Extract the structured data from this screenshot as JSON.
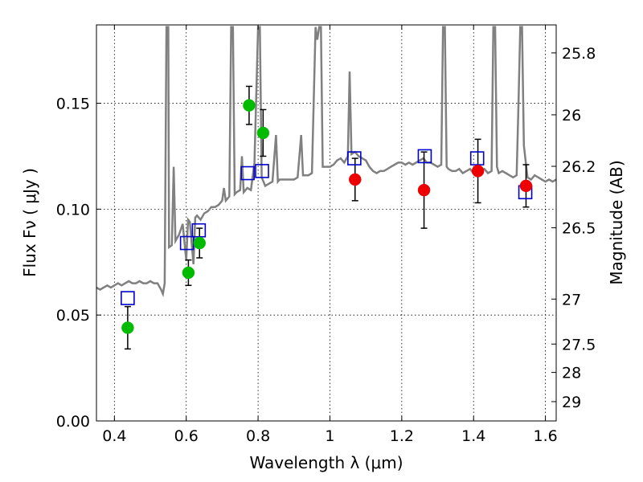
{
  "chart_data": {
    "type": "scatter",
    "xlabel": "Wavelength  λ (μm)",
    "ylabel": "Flux  Fν  ( μJy )",
    "ylabel_right": "Magnitude (AB)",
    "xlim": [
      0.35,
      1.63
    ],
    "ylim": [
      0.0,
      0.187
    ],
    "grid": true,
    "x_ticks": [
      0.4,
      0.6,
      0.8,
      1.0,
      1.2,
      1.4,
      1.6
    ],
    "x_tick_labels": [
      "0.4",
      "0.6",
      "0.8",
      "1",
      "1.2",
      "1.4",
      "1.6"
    ],
    "y_ticks": [
      0.0,
      0.05,
      0.1,
      0.15
    ],
    "y_tick_labels": [
      "0.00",
      "0.05",
      "0.10",
      "0.15"
    ],
    "mag_ticks": [
      25.8,
      26,
      26.2,
      26.5,
      27,
      27.5,
      28,
      29
    ],
    "mag_tick_labels": [
      "25.8",
      "26",
      "26.2",
      "26.5",
      "27",
      "27.5",
      "28",
      "29"
    ],
    "colors": {
      "spectrum": "#808080",
      "observed_green": "#00bb00",
      "observed_red": "#ee0000",
      "model_square": "#0000cc",
      "errorbar": "#000000"
    },
    "spectrum": [
      [
        0.35,
        0.063
      ],
      [
        0.36,
        0.062
      ],
      [
        0.37,
        0.063
      ],
      [
        0.38,
        0.064
      ],
      [
        0.39,
        0.063
      ],
      [
        0.4,
        0.064
      ],
      [
        0.41,
        0.065
      ],
      [
        0.42,
        0.064
      ],
      [
        0.43,
        0.065
      ],
      [
        0.44,
        0.066
      ],
      [
        0.45,
        0.065
      ],
      [
        0.46,
        0.065
      ],
      [
        0.47,
        0.066
      ],
      [
        0.48,
        0.065
      ],
      [
        0.49,
        0.065
      ],
      [
        0.5,
        0.066
      ],
      [
        0.51,
        0.065
      ],
      [
        0.52,
        0.065
      ],
      [
        0.53,
        0.062
      ],
      [
        0.535,
        0.06
      ],
      [
        0.54,
        0.065
      ],
      [
        0.545,
        0.186
      ],
      [
        0.55,
        0.186
      ],
      [
        0.552,
        0.082
      ],
      [
        0.56,
        0.083
      ],
      [
        0.565,
        0.12
      ],
      [
        0.57,
        0.085
      ],
      [
        0.58,
        0.088
      ],
      [
        0.59,
        0.093
      ],
      [
        0.6,
        0.076
      ],
      [
        0.605,
        0.095
      ],
      [
        0.61,
        0.094
      ],
      [
        0.62,
        0.074
      ],
      [
        0.625,
        0.096
      ],
      [
        0.63,
        0.097
      ],
      [
        0.64,
        0.095
      ],
      [
        0.65,
        0.098
      ],
      [
        0.66,
        0.099
      ],
      [
        0.67,
        0.101
      ],
      [
        0.68,
        0.101
      ],
      [
        0.69,
        0.102
      ],
      [
        0.7,
        0.104
      ],
      [
        0.705,
        0.11
      ],
      [
        0.71,
        0.104
      ],
      [
        0.72,
        0.106
      ],
      [
        0.725,
        0.186
      ],
      [
        0.73,
        0.186
      ],
      [
        0.735,
        0.107
      ],
      [
        0.74,
        0.108
      ],
      [
        0.75,
        0.109
      ],
      [
        0.755,
        0.125
      ],
      [
        0.76,
        0.108
      ],
      [
        0.77,
        0.11
      ],
      [
        0.78,
        0.109
      ],
      [
        0.79,
        0.122
      ],
      [
        0.8,
        0.186
      ],
      [
        0.805,
        0.186
      ],
      [
        0.81,
        0.115
      ],
      [
        0.82,
        0.111
      ],
      [
        0.83,
        0.112
      ],
      [
        0.84,
        0.113
      ],
      [
        0.85,
        0.135
      ],
      [
        0.855,
        0.113
      ],
      [
        0.86,
        0.114
      ],
      [
        0.88,
        0.114
      ],
      [
        0.9,
        0.114
      ],
      [
        0.91,
        0.115
      ],
      [
        0.92,
        0.135
      ],
      [
        0.925,
        0.116
      ],
      [
        0.94,
        0.116
      ],
      [
        0.95,
        0.117
      ],
      [
        0.96,
        0.186
      ],
      [
        0.965,
        0.18
      ],
      [
        0.97,
        0.186
      ],
      [
        0.975,
        0.186
      ],
      [
        0.98,
        0.12
      ],
      [
        0.99,
        0.12
      ],
      [
        1.0,
        0.12
      ],
      [
        1.01,
        0.121
      ],
      [
        1.02,
        0.123
      ],
      [
        1.03,
        0.124
      ],
      [
        1.04,
        0.122
      ],
      [
        1.05,
        0.125
      ],
      [
        1.055,
        0.165
      ],
      [
        1.06,
        0.126
      ],
      [
        1.07,
        0.127
      ],
      [
        1.08,
        0.125
      ],
      [
        1.09,
        0.124
      ],
      [
        1.1,
        0.123
      ],
      [
        1.11,
        0.12
      ],
      [
        1.12,
        0.118
      ],
      [
        1.13,
        0.117
      ],
      [
        1.14,
        0.118
      ],
      [
        1.15,
        0.118
      ],
      [
        1.16,
        0.119
      ],
      [
        1.17,
        0.12
      ],
      [
        1.18,
        0.121
      ],
      [
        1.19,
        0.122
      ],
      [
        1.2,
        0.122
      ],
      [
        1.21,
        0.121
      ],
      [
        1.22,
        0.122
      ],
      [
        1.23,
        0.121
      ],
      [
        1.24,
        0.122
      ],
      [
        1.25,
        0.123
      ],
      [
        1.26,
        0.124
      ],
      [
        1.27,
        0.122
      ],
      [
        1.28,
        0.122
      ],
      [
        1.29,
        0.121
      ],
      [
        1.3,
        0.12
      ],
      [
        1.31,
        0.121
      ],
      [
        1.315,
        0.186
      ],
      [
        1.32,
        0.186
      ],
      [
        1.325,
        0.12
      ],
      [
        1.33,
        0.119
      ],
      [
        1.34,
        0.118
      ],
      [
        1.35,
        0.118
      ],
      [
        1.36,
        0.119
      ],
      [
        1.37,
        0.117
      ],
      [
        1.38,
        0.118
      ],
      [
        1.39,
        0.119
      ],
      [
        1.4,
        0.117
      ],
      [
        1.41,
        0.116
      ],
      [
        1.42,
        0.118
      ],
      [
        1.43,
        0.119
      ],
      [
        1.44,
        0.117
      ],
      [
        1.45,
        0.118
      ],
      [
        1.455,
        0.186
      ],
      [
        1.46,
        0.186
      ],
      [
        1.465,
        0.12
      ],
      [
        1.47,
        0.117
      ],
      [
        1.48,
        0.118
      ],
      [
        1.49,
        0.117
      ],
      [
        1.5,
        0.116
      ],
      [
        1.51,
        0.115
      ],
      [
        1.52,
        0.116
      ],
      [
        1.525,
        0.15
      ],
      [
        1.53,
        0.186
      ],
      [
        1.535,
        0.186
      ],
      [
        1.54,
        0.13
      ],
      [
        1.55,
        0.115
      ],
      [
        1.56,
        0.114
      ],
      [
        1.57,
        0.116
      ],
      [
        1.58,
        0.115
      ],
      [
        1.59,
        0.114
      ],
      [
        1.6,
        0.113
      ],
      [
        1.61,
        0.114
      ],
      [
        1.62,
        0.113
      ],
      [
        1.63,
        0.114
      ]
    ],
    "observed": [
      {
        "x": 0.437,
        "y": 0.044,
        "err": 0.01,
        "color": "green"
      },
      {
        "x": 0.606,
        "y": 0.07,
        "err": 0.006,
        "color": "green"
      },
      {
        "x": 0.637,
        "y": 0.084,
        "err": 0.007,
        "color": "green"
      },
      {
        "x": 0.775,
        "y": 0.149,
        "err": 0.009,
        "color": "green"
      },
      {
        "x": 0.814,
        "y": 0.136,
        "err": 0.011,
        "color": "green"
      },
      {
        "x": 1.07,
        "y": 0.114,
        "err": 0.01,
        "color": "red"
      },
      {
        "x": 1.262,
        "y": 0.109,
        "err": 0.018,
        "color": "red"
      },
      {
        "x": 1.412,
        "y": 0.118,
        "err": 0.015,
        "color": "red"
      },
      {
        "x": 1.546,
        "y": 0.111,
        "err": 0.01,
        "color": "red"
      }
    ],
    "model": [
      {
        "x": 0.437,
        "y": 0.058
      },
      {
        "x": 0.602,
        "y": 0.084
      },
      {
        "x": 0.635,
        "y": 0.09
      },
      {
        "x": 0.771,
        "y": 0.117
      },
      {
        "x": 0.811,
        "y": 0.118
      },
      {
        "x": 1.068,
        "y": 0.124
      },
      {
        "x": 1.264,
        "y": 0.125
      },
      {
        "x": 1.41,
        "y": 0.124
      },
      {
        "x": 1.544,
        "y": 0.108
      }
    ]
  }
}
